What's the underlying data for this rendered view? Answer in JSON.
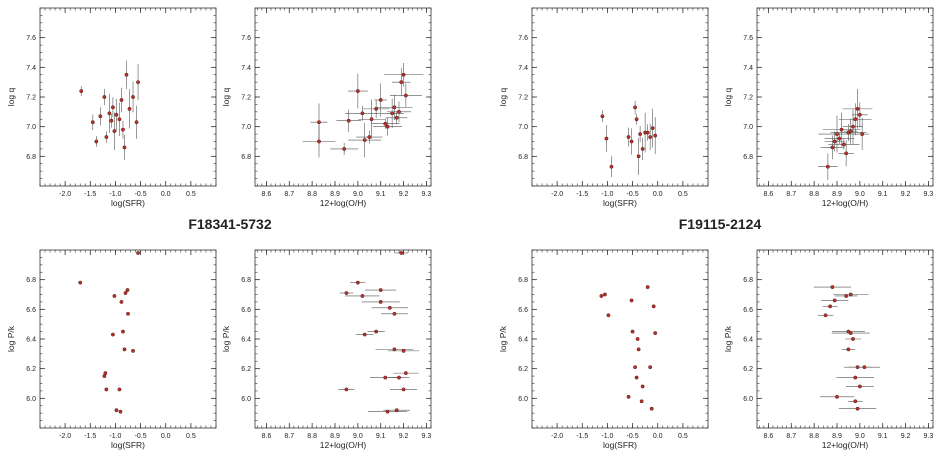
{
  "captions": [
    "F18341-5732",
    "F19115-2124"
  ],
  "chart_data": [
    {
      "type": "scatter",
      "title": "",
      "xlabel": "log(SFR)",
      "ylabel": "log q",
      "xlim": [
        -2.5,
        1.0
      ],
      "ylim": [
        6.6,
        7.8
      ],
      "xticks": [
        "-2.0",
        "-1.5",
        "-1.0",
        "-0.5",
        "0.0",
        "0.5"
      ],
      "yticks": [
        "6.8",
        "7.0",
        "7.2",
        "7.4",
        "7.6"
      ],
      "points": [
        {
          "x": -1.68,
          "y": 7.24
        },
        {
          "x": -1.45,
          "y": 7.03
        },
        {
          "x": -1.38,
          "y": 6.9
        },
        {
          "x": -1.3,
          "y": 7.07
        },
        {
          "x": -1.22,
          "y": 7.2
        },
        {
          "x": -1.18,
          "y": 6.93
        },
        {
          "x": -1.12,
          "y": 7.09
        },
        {
          "x": -1.08,
          "y": 7.04
        },
        {
          "x": -1.05,
          "y": 7.13
        },
        {
          "x": -1.02,
          "y": 6.97
        },
        {
          "x": -0.98,
          "y": 7.08
        },
        {
          "x": -0.92,
          "y": 7.05
        },
        {
          "x": -0.88,
          "y": 7.18
        },
        {
          "x": -0.85,
          "y": 6.98
        },
        {
          "x": -0.82,
          "y": 6.86
        },
        {
          "x": -0.78,
          "y": 7.35
        },
        {
          "x": -0.72,
          "y": 7.12
        },
        {
          "x": -0.65,
          "y": 7.2
        },
        {
          "x": -0.58,
          "y": 7.03
        },
        {
          "x": -0.55,
          "y": 7.3
        }
      ]
    },
    {
      "type": "scatter",
      "title": "",
      "xlabel": "12+log(O/H)",
      "ylabel": "log q",
      "xlim": [
        8.55,
        9.32
      ],
      "ylim": [
        6.6,
        7.8
      ],
      "xticks": [
        "8.6",
        "8.7",
        "8.8",
        "8.9",
        "9.0",
        "9.1",
        "9.2",
        "9.3"
      ],
      "yticks": [
        "6.8",
        "7.0",
        "7.2",
        "7.4",
        "7.6"
      ],
      "points": [
        {
          "x": 8.83,
          "y": 7.03
        },
        {
          "x": 8.83,
          "y": 6.9
        },
        {
          "x": 8.94,
          "y": 6.85
        },
        {
          "x": 8.96,
          "y": 7.04
        },
        {
          "x": 9.0,
          "y": 7.24
        },
        {
          "x": 9.02,
          "y": 7.09
        },
        {
          "x": 9.03,
          "y": 6.91
        },
        {
          "x": 9.05,
          "y": 6.93
        },
        {
          "x": 9.06,
          "y": 7.05
        },
        {
          "x": 9.08,
          "y": 7.12
        },
        {
          "x": 9.1,
          "y": 7.18
        },
        {
          "x": 9.12,
          "y": 7.02
        },
        {
          "x": 9.13,
          "y": 7.0
        },
        {
          "x": 9.15,
          "y": 7.09
        },
        {
          "x": 9.16,
          "y": 7.13
        },
        {
          "x": 9.17,
          "y": 7.06
        },
        {
          "x": 9.18,
          "y": 7.1
        },
        {
          "x": 9.19,
          "y": 7.3
        },
        {
          "x": 9.2,
          "y": 7.35
        },
        {
          "x": 9.21,
          "y": 7.21
        }
      ]
    },
    {
      "type": "scatter",
      "title": "",
      "xlabel": "log(SFR)",
      "ylabel": "log q",
      "xlim": [
        -2.5,
        1.0
      ],
      "ylim": [
        6.6,
        7.8
      ],
      "xticks": [
        "-2.0",
        "-1.5",
        "-1.0",
        "-0.5",
        "0.0",
        "0.5"
      ],
      "yticks": [
        "6.8",
        "7.0",
        "7.2",
        "7.4",
        "7.6"
      ],
      "points": [
        {
          "x": -1.1,
          "y": 7.07
        },
        {
          "x": -1.02,
          "y": 6.92
        },
        {
          "x": -0.92,
          "y": 6.73
        },
        {
          "x": -0.58,
          "y": 6.93
        },
        {
          "x": -0.52,
          "y": 6.9
        },
        {
          "x": -0.45,
          "y": 7.13
        },
        {
          "x": -0.42,
          "y": 7.05
        },
        {
          "x": -0.38,
          "y": 6.8
        },
        {
          "x": -0.35,
          "y": 6.95
        },
        {
          "x": -0.3,
          "y": 6.85
        },
        {
          "x": -0.25,
          "y": 6.96
        },
        {
          "x": -0.2,
          "y": 6.96
        },
        {
          "x": -0.15,
          "y": 6.93
        },
        {
          "x": -0.1,
          "y": 6.99
        },
        {
          "x": -0.05,
          "y": 6.94
        }
      ]
    },
    {
      "type": "scatter",
      "title": "",
      "xlabel": "12+log(O/H)",
      "ylabel": "log q",
      "xlim": [
        8.55,
        9.32
      ],
      "ylim": [
        6.6,
        7.8
      ],
      "xticks": [
        "8.6",
        "8.7",
        "8.8",
        "8.9",
        "9.0",
        "9.1",
        "9.2",
        "9.3"
      ],
      "yticks": [
        "6.8",
        "7.0",
        "7.2",
        "7.4",
        "7.6"
      ],
      "points": [
        {
          "x": 8.86,
          "y": 6.73
        },
        {
          "x": 8.88,
          "y": 6.86
        },
        {
          "x": 8.89,
          "y": 6.9
        },
        {
          "x": 8.9,
          "y": 6.95
        },
        {
          "x": 8.91,
          "y": 6.92
        },
        {
          "x": 8.92,
          "y": 6.98
        },
        {
          "x": 8.93,
          "y": 6.88
        },
        {
          "x": 8.94,
          "y": 6.82
        },
        {
          "x": 8.95,
          "y": 6.96
        },
        {
          "x": 8.96,
          "y": 6.97
        },
        {
          "x": 8.97,
          "y": 7.0
        },
        {
          "x": 8.98,
          "y": 7.05
        },
        {
          "x": 8.99,
          "y": 7.12
        },
        {
          "x": 9.0,
          "y": 7.08
        },
        {
          "x": 9.01,
          "y": 6.95
        }
      ]
    },
    {
      "type": "scatter",
      "title": "",
      "xlabel": "log(SFR)",
      "ylabel": "log P/k",
      "xlim": [
        -2.5,
        1.0
      ],
      "ylim": [
        5.8,
        7.0
      ],
      "xticks": [
        "-2.0",
        "-1.5",
        "-1.0",
        "-0.5",
        "0.0",
        "0.5"
      ],
      "yticks": [
        "6.0",
        "6.2",
        "6.4",
        "6.6",
        "6.8"
      ],
      "points": [
        {
          "x": -1.7,
          "y": 6.78
        },
        {
          "x": -1.22,
          "y": 6.15
        },
        {
          "x": -1.2,
          "y": 6.17
        },
        {
          "x": -1.18,
          "y": 6.06
        },
        {
          "x": -1.05,
          "y": 6.43
        },
        {
          "x": -1.02,
          "y": 6.69
        },
        {
          "x": -0.98,
          "y": 5.92
        },
        {
          "x": -0.92,
          "y": 6.06
        },
        {
          "x": -0.9,
          "y": 5.91
        },
        {
          "x": -0.88,
          "y": 6.65
        },
        {
          "x": -0.85,
          "y": 6.45
        },
        {
          "x": -0.82,
          "y": 6.33
        },
        {
          "x": -0.8,
          "y": 6.71
        },
        {
          "x": -0.76,
          "y": 6.73
        },
        {
          "x": -0.75,
          "y": 6.57
        },
        {
          "x": -0.65,
          "y": 6.32
        },
        {
          "x": -0.55,
          "y": 6.98
        }
      ]
    },
    {
      "type": "scatter",
      "title": "",
      "xlabel": "12+log(O/H)",
      "ylabel": "log P/k",
      "xlim": [
        8.55,
        9.32
      ],
      "ylim": [
        5.8,
        7.0
      ],
      "xticks": [
        "8.6",
        "8.7",
        "8.8",
        "8.9",
        "9.0",
        "9.1",
        "9.2",
        "9.3"
      ],
      "yticks": [
        "6.0",
        "6.2",
        "6.4",
        "6.6",
        "6.8"
      ],
      "points": [
        {
          "x": 8.95,
          "y": 6.71
        },
        {
          "x": 8.95,
          "y": 6.06
        },
        {
          "x": 9.0,
          "y": 6.78
        },
        {
          "x": 9.02,
          "y": 6.69
        },
        {
          "x": 9.03,
          "y": 6.43
        },
        {
          "x": 9.08,
          "y": 6.45
        },
        {
          "x": 9.1,
          "y": 6.73
        },
        {
          "x": 9.1,
          "y": 6.65
        },
        {
          "x": 9.12,
          "y": 6.14
        },
        {
          "x": 9.13,
          "y": 5.91
        },
        {
          "x": 9.14,
          "y": 6.61
        },
        {
          "x": 9.16,
          "y": 6.57
        },
        {
          "x": 9.16,
          "y": 6.33
        },
        {
          "x": 9.17,
          "y": 5.92
        },
        {
          "x": 9.18,
          "y": 6.14
        },
        {
          "x": 9.2,
          "y": 6.32
        },
        {
          "x": 9.2,
          "y": 6.06
        },
        {
          "x": 9.21,
          "y": 6.17
        },
        {
          "x": 9.19,
          "y": 6.98
        }
      ]
    },
    {
      "type": "scatter",
      "title": "",
      "xlabel": "log(SFR)",
      "ylabel": "log P/k",
      "xlim": [
        -2.5,
        1.0
      ],
      "ylim": [
        5.8,
        7.0
      ],
      "xticks": [
        "-2.0",
        "-1.5",
        "-1.0",
        "-0.5",
        "0.0",
        "0.5"
      ],
      "yticks": [
        "6.0",
        "6.2",
        "6.4",
        "6.6",
        "6.8"
      ],
      "points": [
        {
          "x": -1.12,
          "y": 6.69
        },
        {
          "x": -1.05,
          "y": 6.7
        },
        {
          "x": -0.98,
          "y": 6.56
        },
        {
          "x": -0.58,
          "y": 6.01
        },
        {
          "x": -0.52,
          "y": 6.66
        },
        {
          "x": -0.5,
          "y": 6.45
        },
        {
          "x": -0.45,
          "y": 6.21
        },
        {
          "x": -0.42,
          "y": 6.14
        },
        {
          "x": -0.4,
          "y": 6.4
        },
        {
          "x": -0.38,
          "y": 6.33
        },
        {
          "x": -0.32,
          "y": 5.98
        },
        {
          "x": -0.3,
          "y": 6.08
        },
        {
          "x": -0.2,
          "y": 6.75
        },
        {
          "x": -0.15,
          "y": 6.21
        },
        {
          "x": -0.12,
          "y": 5.93
        },
        {
          "x": -0.08,
          "y": 6.62
        },
        {
          "x": -0.05,
          "y": 6.44
        }
      ]
    },
    {
      "type": "scatter",
      "title": "",
      "xlabel": "12+log(O/H)",
      "ylabel": "log P/k",
      "xlim": [
        8.55,
        9.32
      ],
      "ylim": [
        5.8,
        7.0
      ],
      "xticks": [
        "8.6",
        "8.7",
        "8.8",
        "8.9",
        "9.0",
        "9.1",
        "9.2",
        "9.3"
      ],
      "yticks": [
        "6.0",
        "6.2",
        "6.4",
        "6.6",
        "6.8"
      ],
      "points": [
        {
          "x": 8.85,
          "y": 6.56
        },
        {
          "x": 8.87,
          "y": 6.62
        },
        {
          "x": 8.88,
          "y": 6.75
        },
        {
          "x": 8.89,
          "y": 6.66
        },
        {
          "x": 8.9,
          "y": 6.01
        },
        {
          "x": 8.94,
          "y": 6.69
        },
        {
          "x": 8.95,
          "y": 6.45
        },
        {
          "x": 8.95,
          "y": 6.33
        },
        {
          "x": 8.96,
          "y": 6.7
        },
        {
          "x": 8.96,
          "y": 6.44
        },
        {
          "x": 8.97,
          "y": 6.4
        },
        {
          "x": 8.98,
          "y": 6.14
        },
        {
          "x": 8.98,
          "y": 5.98
        },
        {
          "x": 8.99,
          "y": 6.21
        },
        {
          "x": 8.99,
          "y": 5.93
        },
        {
          "x": 9.0,
          "y": 6.08
        },
        {
          "x": 9.02,
          "y": 6.21
        }
      ]
    }
  ]
}
